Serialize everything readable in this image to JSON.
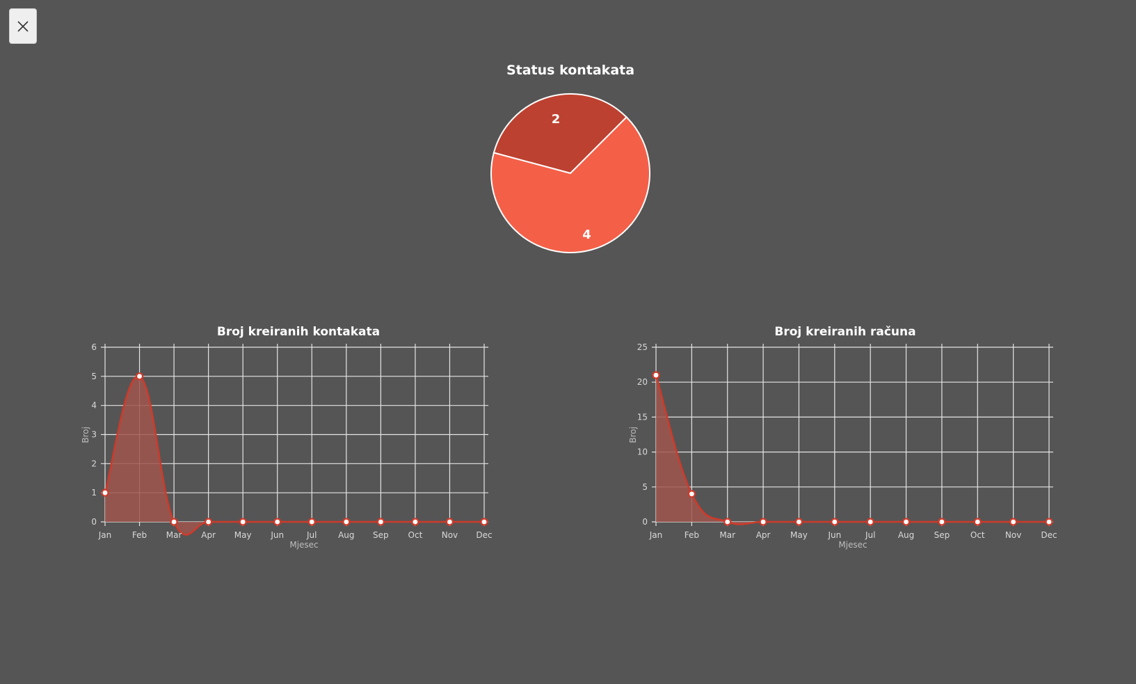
{
  "toolbar": {
    "close_icon": "close-icon"
  },
  "colors": {
    "background": "#555555",
    "pie_slice_1": "#bd4130",
    "pie_slice_2": "#f45f48",
    "line": "#cf3a2a",
    "area": "#a0564e",
    "grid": "#e5e5e5"
  },
  "chart_data": [
    {
      "type": "pie",
      "title": "Status kontakata",
      "categories": [
        "",
        ""
      ],
      "values": [
        2,
        4
      ]
    },
    {
      "type": "area",
      "title": "Broj kreiranih kontakata",
      "xlabel": "Mjesec",
      "ylabel": "Broj",
      "categories": [
        "Jan",
        "Feb",
        "Mar",
        "Apr",
        "May",
        "Jun",
        "Jul",
        "Aug",
        "Sep",
        "Oct",
        "Nov",
        "Dec"
      ],
      "values": [
        1,
        5,
        0,
        0,
        0,
        0,
        0,
        0,
        0,
        0,
        0,
        0
      ],
      "ylim": [
        0,
        6
      ],
      "yticks": [
        "0",
        "1",
        "2",
        "3",
        "4",
        "5",
        "6"
      ],
      "grid": true
    },
    {
      "type": "area",
      "title": "Broj kreiranih računa",
      "xlabel": "Mjesec",
      "ylabel": "Broj",
      "categories": [
        "Jan",
        "Feb",
        "Mar",
        "Apr",
        "May",
        "Jun",
        "Jul",
        "Aug",
        "Sep",
        "Oct",
        "Nov",
        "Dec"
      ],
      "values": [
        21,
        4,
        0,
        0,
        0,
        0,
        0,
        0,
        0,
        0,
        0,
        0
      ],
      "ylim": [
        0,
        25
      ],
      "yticks": [
        "0",
        "5",
        "10",
        "15",
        "20",
        "25"
      ],
      "grid": true
    }
  ]
}
